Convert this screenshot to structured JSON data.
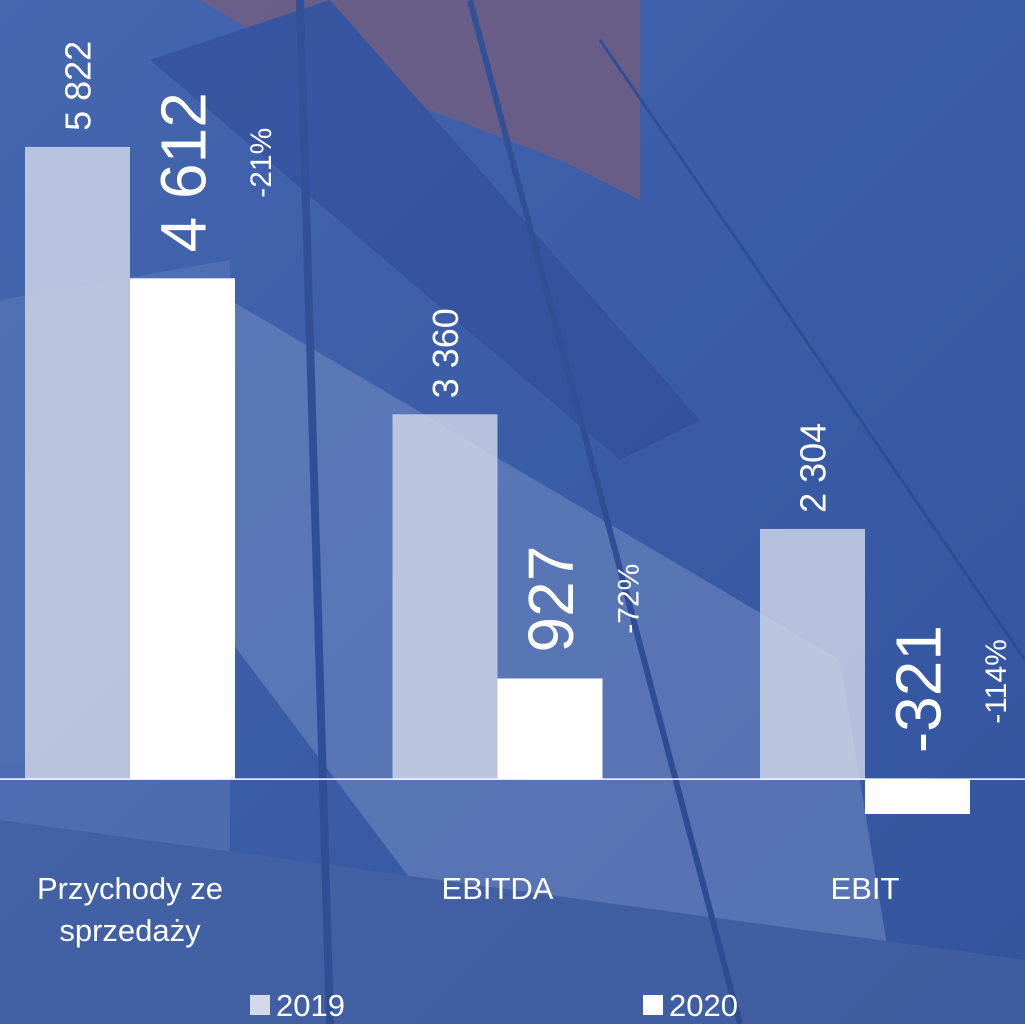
{
  "chart_data": {
    "type": "bar",
    "categories": [
      "Przychody ze sprzedaży",
      "EBITDA",
      "EBIT"
    ],
    "series": [
      {
        "name": "2019",
        "color": "#d3d9ea",
        "values": [
          5822,
          3360,
          2304
        ],
        "value_labels": [
          "5 822",
          "3 360",
          "2 304"
        ]
      },
      {
        "name": "2020",
        "color": "#ffffff",
        "values": [
          4612,
          927,
          -321
        ],
        "value_labels": [
          "4 612",
          "927",
          "-321"
        ]
      }
    ],
    "annotations": [
      "-21%",
      "-72%",
      "-114%"
    ],
    "ylim": [
      -1500,
      7000
    ],
    "legend": "bottom"
  }
}
